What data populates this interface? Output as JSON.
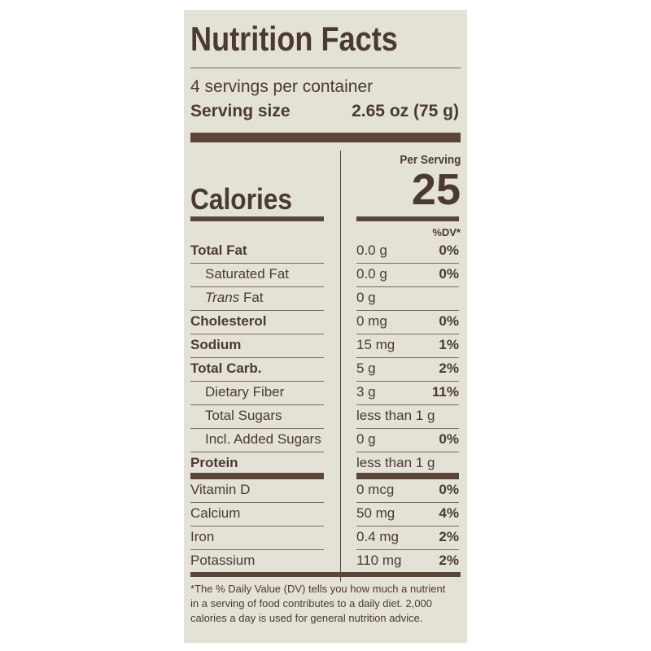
{
  "label": {
    "title": "Nutrition Facts",
    "servings": "4 servings per container",
    "serving_size_label": "Serving size",
    "serving_size": "2.65 oz (75 g)",
    "per_serving": "Per Serving",
    "calories_label": "Calories",
    "calories": "25",
    "dv_header": "%DV*",
    "rows": [
      {
        "name": "Total Fat",
        "amount": "0.0 g",
        "dv": "0%",
        "bold": true
      },
      {
        "name": "Saturated Fat",
        "amount": "0.0 g",
        "dv": "0%",
        "indent": true
      },
      {
        "name_italic": "Trans",
        "name": "Fat",
        "amount": "0 g",
        "indent": true
      },
      {
        "name": "Cholesterol",
        "amount": "0 mg",
        "dv": "0%",
        "bold": true
      },
      {
        "name": "Sodium",
        "amount": "15 mg",
        "dv": "1%",
        "bold": true
      },
      {
        "name": "Total Carb.",
        "amount": "5 g",
        "dv": "2%",
        "bold": true
      },
      {
        "name": "Dietary Fiber",
        "amount": "3 g",
        "dv": "11%",
        "indent": true
      },
      {
        "name": "Total Sugars",
        "amount": "less than 1 g",
        "indent": true
      },
      {
        "name": "Incl. Added Sugars",
        "amount": "0 g",
        "dv": "0%",
        "indent": true
      },
      {
        "name": "Protein",
        "amount": "less than 1 g",
        "bold": true
      }
    ],
    "vitamins": [
      {
        "name": "Vitamin D",
        "amount": "0 mcg",
        "dv": "0%"
      },
      {
        "name": "Calcium",
        "amount": "50 mg",
        "dv": "4%"
      },
      {
        "name": "Iron",
        "amount": "0.4 mg",
        "dv": "2%"
      },
      {
        "name": "Potassium",
        "amount": "110 mg",
        "dv": "2%"
      }
    ],
    "footnote": [
      "*The % Daily Value (DV) tells you how much a nutrient",
      "in a serving of food contributes to a daily diet. 2,000",
      "calories a day is used for general nutrition advice."
    ]
  }
}
